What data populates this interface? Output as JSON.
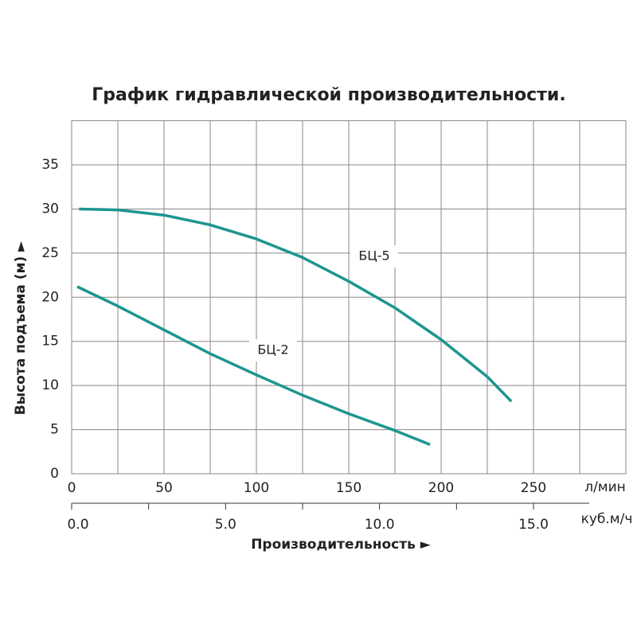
{
  "chart_data": {
    "type": "line",
    "title": "График гидравлической производительности.",
    "ylabel": "Высота подъема (м) ►",
    "xlabel": "Производительность ►",
    "x_unit": "л/мин",
    "x2_unit": "куб.м/ч",
    "xlim": [
      0,
      300
    ],
    "xticks": [
      0,
      50,
      100,
      150,
      200,
      250
    ],
    "x_minor_ticks": [
      25,
      75,
      125,
      175,
      225,
      275
    ],
    "x2lim": [
      0,
      18
    ],
    "x2ticks": [
      {
        "value": 0,
        "label": "0.0"
      },
      {
        "value": 5,
        "label": "5.0"
      },
      {
        "value": 10,
        "label": "10.0"
      },
      {
        "value": 15,
        "label": "15.0"
      }
    ],
    "x2_minor_ticks": [
      2.5,
      7.5,
      12.5
    ],
    "ylim": [
      0,
      40
    ],
    "yticks": [
      0,
      5,
      10,
      15,
      20,
      25,
      30,
      35
    ],
    "grid": true,
    "series": [
      {
        "name": "БЦ-5",
        "color": "#1d9590",
        "x": [
          4,
          25,
          50,
          75,
          100,
          125,
          150,
          175,
          200,
          225,
          238
        ],
        "values": [
          30,
          29.9,
          29.3,
          28.2,
          26.6,
          24.5,
          21.8,
          18.8,
          15.2,
          11,
          8.2
        ]
      },
      {
        "name": "БЦ-2",
        "color": "#1d9590",
        "x": [
          3,
          25,
          50,
          75,
          100,
          125,
          150,
          175,
          194
        ],
        "values": [
          21.2,
          19,
          16.3,
          13.6,
          11.2,
          8.9,
          6.8,
          4.9,
          3.3
        ]
      }
    ]
  }
}
